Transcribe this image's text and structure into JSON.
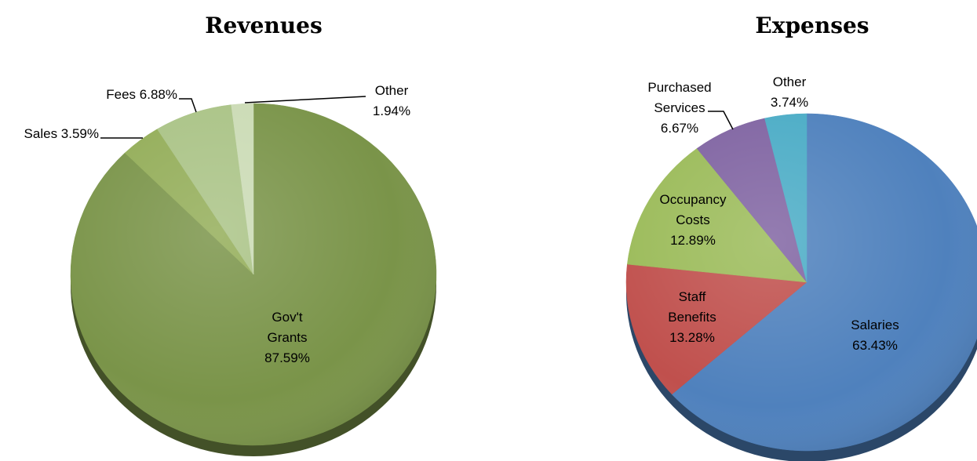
{
  "chart_data": [
    {
      "type": "pie",
      "title": "Revenues",
      "slices": [
        {
          "name": "Gov't Grants",
          "value": 87.59,
          "label_lines": [
            "Gov't",
            "Grants",
            "87.59%"
          ],
          "color": "#7a9449",
          "label_mode": "inside"
        },
        {
          "name": "Sales",
          "value": 3.59,
          "label_lines": [
            "Sales 3.59%"
          ],
          "color": "#93ad58",
          "label_mode": "outside"
        },
        {
          "name": "Fees",
          "value": 6.88,
          "label_lines": [
            "Fees 6.88%"
          ],
          "color": "#aac386",
          "label_mode": "outside"
        },
        {
          "name": "Other",
          "value": 1.94,
          "label_lines": [
            "Other",
            "1.94%"
          ],
          "color": "#cbdbb5",
          "label_mode": "outside"
        }
      ]
    },
    {
      "type": "pie",
      "title": "Expenses",
      "slices": [
        {
          "name": "Salaries",
          "value": 63.43,
          "label_lines": [
            "Salaries",
            "63.43%"
          ],
          "color": "#4f81bd",
          "label_mode": "inside"
        },
        {
          "name": "Staff Benefits",
          "value": 13.28,
          "label_lines": [
            "Staff",
            "Benefits",
            "13.28%"
          ],
          "color": "#c0504d",
          "label_mode": "inside"
        },
        {
          "name": "Occupancy Costs",
          "value": 12.89,
          "label_lines": [
            "Occupancy",
            "Costs",
            "12.89%"
          ],
          "color": "#9bbb59",
          "label_mode": "inside"
        },
        {
          "name": "Purchased Services",
          "value": 6.67,
          "label_lines": [
            "Purchased",
            "Services",
            "6.67%"
          ],
          "color": "#8064a2",
          "label_mode": "outside"
        },
        {
          "name": "Other",
          "value": 3.74,
          "label_lines": [
            "Other",
            "3.74%"
          ],
          "color": "#4bacc6",
          "label_mode": "outside"
        }
      ]
    }
  ]
}
